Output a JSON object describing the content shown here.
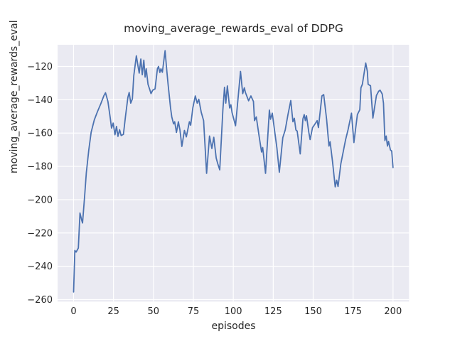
{
  "figure": {
    "background": "#ffffff"
  },
  "chart_data": {
    "type": "line",
    "title": "moving_average_rewards_eval of DDPG",
    "xlabel": "episodes",
    "ylabel": "moving_average_rewards_eval",
    "xlim": [
      -10,
      210
    ],
    "ylim": [
      -261.2,
      -107.1
    ],
    "grid": true,
    "legend": "none",
    "style": {
      "plot_bg": "#eaeaf2",
      "grid_color": "#ffffff",
      "line_color": "#4c72b0",
      "text_color": "#262626",
      "line_width": 1.8
    },
    "x_ticks": {
      "values": [
        0,
        25,
        50,
        75,
        100,
        125,
        150,
        175,
        200
      ],
      "labels": [
        "0",
        "25",
        "50",
        "75",
        "100",
        "125",
        "150",
        "175",
        "200"
      ]
    },
    "y_ticks": {
      "values": [
        -260,
        -240,
        -220,
        -200,
        -180,
        -160,
        -140,
        -120
      ],
      "labels": [
        "−260",
        "−240",
        "−220",
        "−200",
        "−180",
        "−160",
        "−140",
        "−120"
      ]
    },
    "series": [
      {
        "name": "moving_average_rewards_eval",
        "points": [
          [
            0,
            -255.5
          ],
          [
            0.8,
            -230.5
          ],
          [
            1.6,
            -231.5
          ],
          [
            3,
            -229
          ],
          [
            4,
            -208
          ],
          [
            5,
            -212
          ],
          [
            5.6,
            -214
          ],
          [
            7,
            -197
          ],
          [
            8,
            -184
          ],
          [
            9.5,
            -170.5
          ],
          [
            11,
            -159.5
          ],
          [
            13,
            -152
          ],
          [
            15,
            -147
          ],
          [
            17,
            -142.5
          ],
          [
            19,
            -137.5
          ],
          [
            20,
            -135.8
          ],
          [
            21.5,
            -141
          ],
          [
            23,
            -151
          ],
          [
            23.8,
            -157
          ],
          [
            24.8,
            -154
          ],
          [
            25.9,
            -161
          ],
          [
            26.9,
            -156
          ],
          [
            27.8,
            -162
          ],
          [
            28.8,
            -158
          ],
          [
            29.8,
            -161.5
          ],
          [
            31.2,
            -160.8
          ],
          [
            32.5,
            -150
          ],
          [
            34,
            -138.5
          ],
          [
            34.8,
            -135.6
          ],
          [
            35.8,
            -142
          ],
          [
            36.8,
            -139.5
          ],
          [
            37.7,
            -125.5
          ],
          [
            39.3,
            -113.6
          ],
          [
            40.3,
            -119.5
          ],
          [
            41.1,
            -124
          ],
          [
            42.1,
            -115.5
          ],
          [
            43,
            -125
          ],
          [
            44,
            -116.2
          ],
          [
            44.8,
            -126.4
          ],
          [
            45.5,
            -121.4
          ],
          [
            46.6,
            -130.7
          ],
          [
            47.8,
            -134.2
          ],
          [
            48.5,
            -136.3
          ],
          [
            49.6,
            -134.2
          ],
          [
            51,
            -133.5
          ],
          [
            52.5,
            -121.4
          ],
          [
            53.2,
            -120
          ],
          [
            54,
            -123.6
          ],
          [
            54.7,
            -121.4
          ],
          [
            55.6,
            -123.5
          ],
          [
            57.3,
            -110.5
          ],
          [
            58.4,
            -122.9
          ],
          [
            59.2,
            -131
          ],
          [
            60.7,
            -144.9
          ],
          [
            61.5,
            -150.2
          ],
          [
            62.6,
            -154.5
          ],
          [
            63.3,
            -153.2
          ],
          [
            64.4,
            -159.6
          ],
          [
            65.6,
            -153.2
          ],
          [
            66.6,
            -158.1
          ],
          [
            67.8,
            -168
          ],
          [
            69.4,
            -158.4
          ],
          [
            70.6,
            -162.3
          ],
          [
            72.5,
            -153.2
          ],
          [
            73.3,
            -155.3
          ],
          [
            74.7,
            -144.7
          ],
          [
            76.2,
            -137.7
          ],
          [
            77.4,
            -142
          ],
          [
            78.4,
            -139.7
          ],
          [
            79.9,
            -147.4
          ],
          [
            81.4,
            -152.5
          ],
          [
            83.3,
            -184.2
          ],
          [
            85.1,
            -161.8
          ],
          [
            86.6,
            -169.3
          ],
          [
            87.8,
            -162.5
          ],
          [
            89.3,
            -175
          ],
          [
            90.3,
            -178.5
          ],
          [
            91.5,
            -182.1
          ],
          [
            93.5,
            -146
          ],
          [
            94.5,
            -132.5
          ],
          [
            95.3,
            -142
          ],
          [
            96.3,
            -131.7
          ],
          [
            97.7,
            -144.9
          ],
          [
            98.5,
            -143
          ],
          [
            99.2,
            -147.7
          ],
          [
            101.4,
            -155.6
          ],
          [
            103.2,
            -137
          ],
          [
            104.5,
            -123
          ],
          [
            105.9,
            -136.3
          ],
          [
            106.9,
            -132.8
          ],
          [
            107.6,
            -135.6
          ],
          [
            109.6,
            -140.6
          ],
          [
            111,
            -137.7
          ],
          [
            112.6,
            -141
          ],
          [
            113.3,
            -152.5
          ],
          [
            114.4,
            -150.3
          ],
          [
            116.2,
            -162
          ],
          [
            117.7,
            -171.4
          ],
          [
            118.4,
            -168.7
          ],
          [
            119.2,
            -175.6
          ],
          [
            120.2,
            -184.2
          ],
          [
            122.6,
            -146.2
          ],
          [
            123.3,
            -151.7
          ],
          [
            124.4,
            -148.1
          ],
          [
            125.9,
            -158.8
          ],
          [
            127.3,
            -169
          ],
          [
            128.8,
            -183.5
          ],
          [
            131,
            -162.7
          ],
          [
            132.5,
            -158.1
          ],
          [
            134.2,
            -149
          ],
          [
            136,
            -140.5
          ],
          [
            137.3,
            -153.2
          ],
          [
            138.2,
            -151.1
          ],
          [
            139.2,
            -158.1
          ],
          [
            140,
            -158.8
          ],
          [
            141.9,
            -172.5
          ],
          [
            143.6,
            -151.5
          ],
          [
            144.4,
            -148.9
          ],
          [
            145.1,
            -152.5
          ],
          [
            145.8,
            -149.6
          ],
          [
            147.3,
            -159.6
          ],
          [
            148.1,
            -163.9
          ],
          [
            149.6,
            -156.7
          ],
          [
            151.2,
            -154.5
          ],
          [
            152.5,
            -152.5
          ],
          [
            153.3,
            -156.7
          ],
          [
            155.5,
            -137.7
          ],
          [
            156.6,
            -136.9
          ],
          [
            158.4,
            -151.7
          ],
          [
            159.9,
            -167.8
          ],
          [
            160.6,
            -165.2
          ],
          [
            162.1,
            -177
          ],
          [
            163.8,
            -192.3
          ],
          [
            164.7,
            -188.3
          ],
          [
            165.6,
            -192.1
          ],
          [
            167.3,
            -178.5
          ],
          [
            168.8,
            -171.4
          ],
          [
            170.3,
            -164
          ],
          [
            171.8,
            -158.1
          ],
          [
            174,
            -148.1
          ],
          [
            175.5,
            -165.7
          ],
          [
            177.7,
            -148.9
          ],
          [
            179.2,
            -146
          ],
          [
            179.9,
            -132.8
          ],
          [
            180.8,
            -130.7
          ],
          [
            182.9,
            -117.9
          ],
          [
            183.9,
            -122.9
          ],
          [
            184.4,
            -130.7
          ],
          [
            185.9,
            -131.6
          ],
          [
            187.4,
            -151
          ],
          [
            189.6,
            -137.4
          ],
          [
            191,
            -134.9
          ],
          [
            191.9,
            -134.2
          ],
          [
            193.2,
            -136.5
          ],
          [
            194,
            -142
          ],
          [
            194.9,
            -164.5
          ],
          [
            195.7,
            -161.8
          ],
          [
            196.5,
            -167.8
          ],
          [
            197.2,
            -165
          ],
          [
            198.4,
            -170.2
          ],
          [
            199.2,
            -170.8
          ],
          [
            200,
            -180.7
          ]
        ]
      }
    ]
  }
}
